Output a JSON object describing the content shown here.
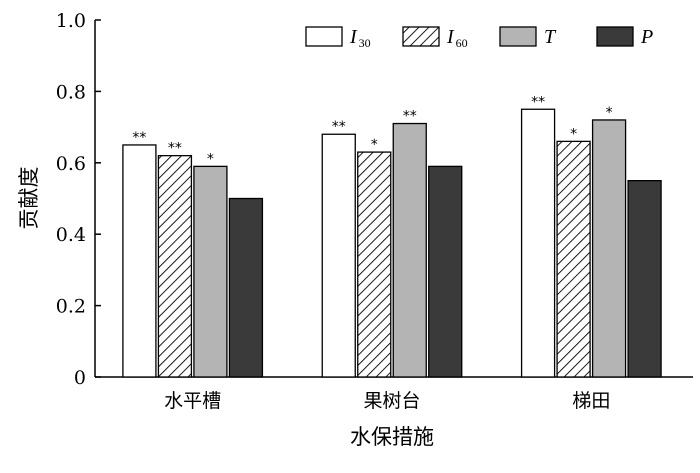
{
  "chart_data": {
    "type": "bar",
    "xlabel": "水保措施",
    "ylabel": "贡献度",
    "ylim": [
      0,
      1.0
    ],
    "yticks": [
      "0",
      "0.2",
      "0.4",
      "0.6",
      "0.8",
      "1.0"
    ],
    "categories": [
      "水平槽",
      "果树台",
      "梯田"
    ],
    "series": [
      {
        "name": "I30",
        "name_main": "I",
        "name_sub": "30",
        "style": "white",
        "values": [
          0.65,
          0.68,
          0.75
        ],
        "significance": [
          "**",
          "**",
          "**"
        ]
      },
      {
        "name": "I60",
        "name_main": "I",
        "name_sub": "60",
        "style": "hatched",
        "values": [
          0.62,
          0.63,
          0.66
        ],
        "significance": [
          "**",
          "*",
          "*"
        ]
      },
      {
        "name": "T",
        "name_main": "T",
        "name_sub": "",
        "style": "light-gray",
        "values": [
          0.59,
          0.71,
          0.72
        ],
        "significance": [
          "*",
          "**",
          "*"
        ]
      },
      {
        "name": "P",
        "name_main": "P",
        "name_sub": "",
        "style": "dark-gray",
        "values": [
          0.5,
          0.59,
          0.55
        ],
        "significance": [
          "",
          "",
          ""
        ]
      }
    ],
    "legend_position": "top-right",
    "grid": false
  },
  "colors": {
    "white": "#ffffff",
    "light_gray": "#b4b4b4",
    "dark_gray": "#3a3a3a",
    "stroke": "#000000"
  }
}
